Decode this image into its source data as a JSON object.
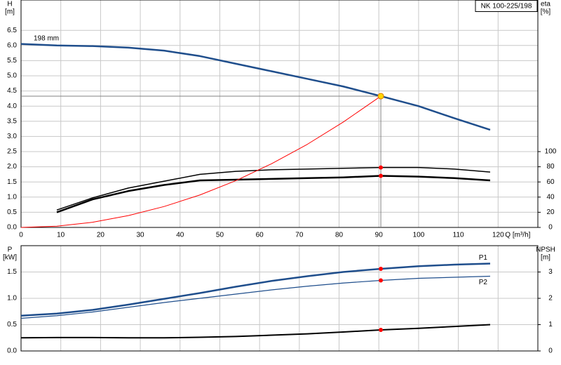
{
  "chart_data": [
    {
      "type": "line",
      "title": "NK 100-225/198",
      "ylabel": "H",
      "yunit": "[m]",
      "y2label": "eta",
      "y2unit": "[%]",
      "xlabel": "Q [m³/h]",
      "x": [
        0,
        9,
        18,
        27,
        36,
        45,
        54,
        63,
        72,
        81,
        90.5,
        100,
        109,
        118
      ],
      "xlim": [
        0,
        130
      ],
      "xticks": [
        0,
        10,
        20,
        30,
        40,
        50,
        60,
        70,
        80,
        90,
        100,
        110,
        120
      ],
      "ylim": [
        0,
        7.5
      ],
      "yticks": [
        {
          "value": 0,
          "label": "0.0"
        },
        0.5,
        {
          "value": 1,
          "label": "1.0"
        },
        1.5,
        {
          "value": 2,
          "label": "2.0"
        },
        2.5,
        {
          "value": 3,
          "label": "3.0"
        },
        3.5,
        {
          "value": 4,
          "label": "4.0"
        },
        4.5,
        {
          "value": 5,
          "label": "5.0"
        },
        5.5,
        {
          "value": 6,
          "label": "6.0"
        },
        6.5
      ],
      "y2lim": [
        0,
        300
      ],
      "y2ticks": [
        0,
        20,
        40,
        60,
        80,
        100
      ],
      "grid": true,
      "duty_point": {
        "x": 90.5,
        "y": 4.33,
        "color": "#ffd700"
      },
      "series": [
        {
          "name": "198 mm",
          "color": "#1f4e8c",
          "width": 2.5,
          "values": [
            6.05,
            6.0,
            5.98,
            5.93,
            5.83,
            5.65,
            5.4,
            5.15,
            4.9,
            4.65,
            4.33,
            4.0,
            3.6,
            3.22
          ]
        },
        {
          "color": "#000000",
          "width": 1.5,
          "axis": "y2",
          "values": [
            null,
            23,
            39,
            52,
            61,
            70,
            74,
            76,
            77,
            78,
            79,
            79,
            77,
            73
          ]
        },
        {
          "color": "#000000",
          "width": 2.5,
          "axis": "y2",
          "values": [
            null,
            20,
            37,
            48,
            56,
            62,
            63,
            64,
            65,
            66,
            68,
            67,
            65,
            62
          ]
        },
        {
          "color": "#ff0000",
          "width": 1,
          "values": [
            0,
            0.04,
            0.17,
            0.39,
            0.69,
            1.07,
            1.54,
            2.1,
            2.74,
            3.47,
            4.33,
            null,
            null,
            null
          ]
        }
      ]
    },
    {
      "type": "line",
      "ylabel": "P",
      "yunit": "[kW]",
      "y2label": "NPSH",
      "y2unit": "[m]",
      "x": [
        0,
        9,
        18,
        27,
        36,
        45,
        54,
        63,
        72,
        81,
        90.5,
        100,
        109,
        118
      ],
      "xlim": [
        0,
        130
      ],
      "ylim": [
        0,
        2
      ],
      "yticks": [
        {
          "value": 0,
          "label": "0.0"
        },
        0.5,
        {
          "value": 1,
          "label": "1.0"
        },
        1.5
      ],
      "y2lim": [
        0,
        4
      ],
      "y2ticks": [
        0,
        1,
        2,
        3
      ],
      "grid": true,
      "series": [
        {
          "name": "P1",
          "color": "#1f4e8c",
          "width": 2.5,
          "values": [
            0.67,
            0.71,
            0.78,
            0.88,
            0.99,
            1.1,
            1.22,
            1.33,
            1.42,
            1.5,
            1.56,
            1.61,
            1.64,
            1.66
          ]
        },
        {
          "name": "P2",
          "color": "#1f4e8c",
          "width": 1.2,
          "values": [
            0.62,
            0.67,
            0.74,
            0.83,
            0.92,
            1.0,
            1.08,
            1.16,
            1.23,
            1.29,
            1.34,
            1.38,
            1.4,
            1.42
          ]
        },
        {
          "color": "#000000",
          "width": 2,
          "axis": "y2",
          "values": [
            0.5,
            0.51,
            0.51,
            0.5,
            0.5,
            0.52,
            0.55,
            0.6,
            0.65,
            0.72,
            0.8,
            0.86,
            0.93,
            1.0
          ]
        }
      ]
    }
  ]
}
